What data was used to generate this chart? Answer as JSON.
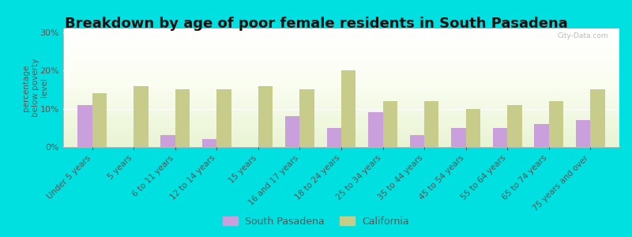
{
  "title": "Breakdown by age of poor female residents in South Pasadena",
  "ylabel": "percentage\nbelow poverty\nlevel",
  "categories": [
    "Under 5 years",
    "5 years",
    "6 to 11 years",
    "12 to 14 years",
    "15 years",
    "16 and 17 years",
    "18 to 24 years",
    "25 to 34 years",
    "35 to 44 years",
    "45 to 54 years",
    "55 to 64 years",
    "65 to 74 years",
    "75 years and over"
  ],
  "south_pasadena": [
    11,
    0,
    3,
    2,
    0,
    8,
    5,
    9,
    3,
    5,
    5,
    6,
    7
  ],
  "california": [
    14,
    16,
    15,
    15,
    16,
    15,
    20,
    12,
    12,
    10,
    11,
    12,
    15
  ],
  "sp_color": "#c9a0dc",
  "ca_color": "#c8cc8a",
  "outer_bg": "#00e0e0",
  "ylim": [
    0,
    31
  ],
  "yticks": [
    0,
    10,
    20,
    30
  ],
  "ytick_labels": [
    "0%",
    "10%",
    "20%",
    "30%"
  ],
  "title_fontsize": 13,
  "label_fontsize": 7.5,
  "tick_fontsize": 8,
  "legend_sp": "South Pasadena",
  "legend_ca": "California",
  "watermark": "City-Data.com",
  "bar_width": 0.35
}
